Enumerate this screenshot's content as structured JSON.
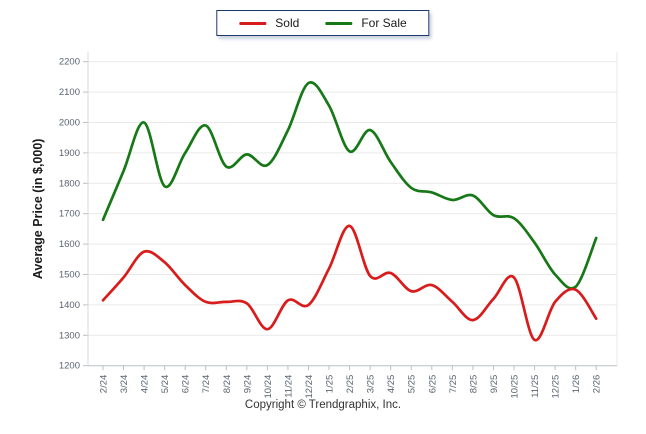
{
  "legend": {
    "items": [
      {
        "label": "Sold",
        "color": "#d81c1c"
      },
      {
        "label": "For Sale",
        "color": "#177817"
      }
    ]
  },
  "y_axis": {
    "title": "Average Price (in $,000)",
    "min": 1200,
    "max": 2200,
    "step": 100
  },
  "footer": {
    "text": "Copyright © Trendgraphix, Inc."
  },
  "colors": {
    "grid": "#e9e9e9",
    "axis_line": "#b9c0c7",
    "side_line": "#d4d9de",
    "tick": "#b9c0c7",
    "tick_label": "#5a6472",
    "axis_title": "#1a1a1a"
  },
  "chart_data": {
    "type": "line",
    "title": "",
    "xlabel": "",
    "ylabel": "Average Price (in $,000)",
    "ylim": [
      1200,
      2200
    ],
    "grid": true,
    "legend_position": "top-center",
    "smoothing": "spline",
    "categories": [
      "2/24",
      "3/24",
      "4/24",
      "5/24",
      "6/24",
      "7/24",
      "8/24",
      "9/24",
      "10/24",
      "11/24",
      "12/24",
      "1/25",
      "2/25",
      "3/25",
      "4/25",
      "5/25",
      "6/25",
      "7/25",
      "8/25",
      "9/25",
      "10/25",
      "11/25",
      "12/25",
      "1/26",
      "2/26"
    ],
    "series": [
      {
        "name": "Sold",
        "color": "#d81c1c",
        "values": [
          1415,
          1490,
          1575,
          1540,
          1465,
          1410,
          1410,
          1405,
          1320,
          1415,
          1400,
          1520,
          1660,
          1495,
          1505,
          1445,
          1465,
          1410,
          1350,
          1420,
          1490,
          1285,
          1410,
          1450,
          1355
        ]
      },
      {
        "name": "For Sale",
        "color": "#177817",
        "values": [
          1680,
          1840,
          2000,
          1790,
          1900,
          1990,
          1855,
          1895,
          1860,
          1975,
          2130,
          2055,
          1905,
          1975,
          1870,
          1785,
          1770,
          1745,
          1760,
          1695,
          1685,
          1605,
          1500,
          1460,
          1620
        ]
      }
    ]
  }
}
